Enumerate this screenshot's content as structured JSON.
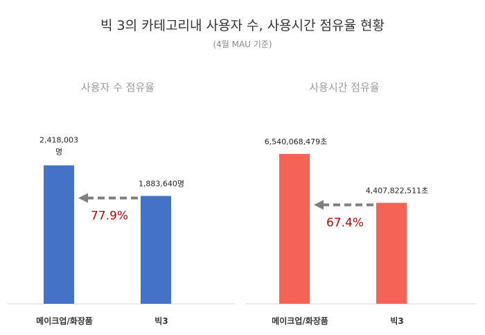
{
  "header": {
    "title": "빅 3의 카테고리내 사용자 수, 사용시간 점유율 현황",
    "subtitle": "(4월 MAU 기준)"
  },
  "chart_data": [
    {
      "type": "bar",
      "title": "사용자 수 점유율",
      "categories": [
        "메이크업/화장품",
        "빅3"
      ],
      "values": [
        2418003,
        1883640
      ],
      "value_labels": [
        "2,418,003",
        "1,883,640명"
      ],
      "value_label_second_line": [
        "명",
        ""
      ],
      "share_label": "77.9%",
      "bar_color": "#4472c4",
      "share_color": "#c00000",
      "arrow_color": "#7f7f7f",
      "ylim": [
        0,
        3550000
      ]
    },
    {
      "type": "bar",
      "title": "사용시간 점유율",
      "categories": [
        "메이크업/화장품",
        "빅3"
      ],
      "values": [
        6540068479,
        4407822511
      ],
      "value_labels": [
        "6,540,068,479초",
        "4,407,822,511초"
      ],
      "value_label_second_line": [
        "",
        ""
      ],
      "share_label": "67.4%",
      "bar_color": "#f46353",
      "share_color": "#c00000",
      "arrow_color": "#7f7f7f",
      "ylim": [
        0,
        8870000000
      ]
    }
  ]
}
